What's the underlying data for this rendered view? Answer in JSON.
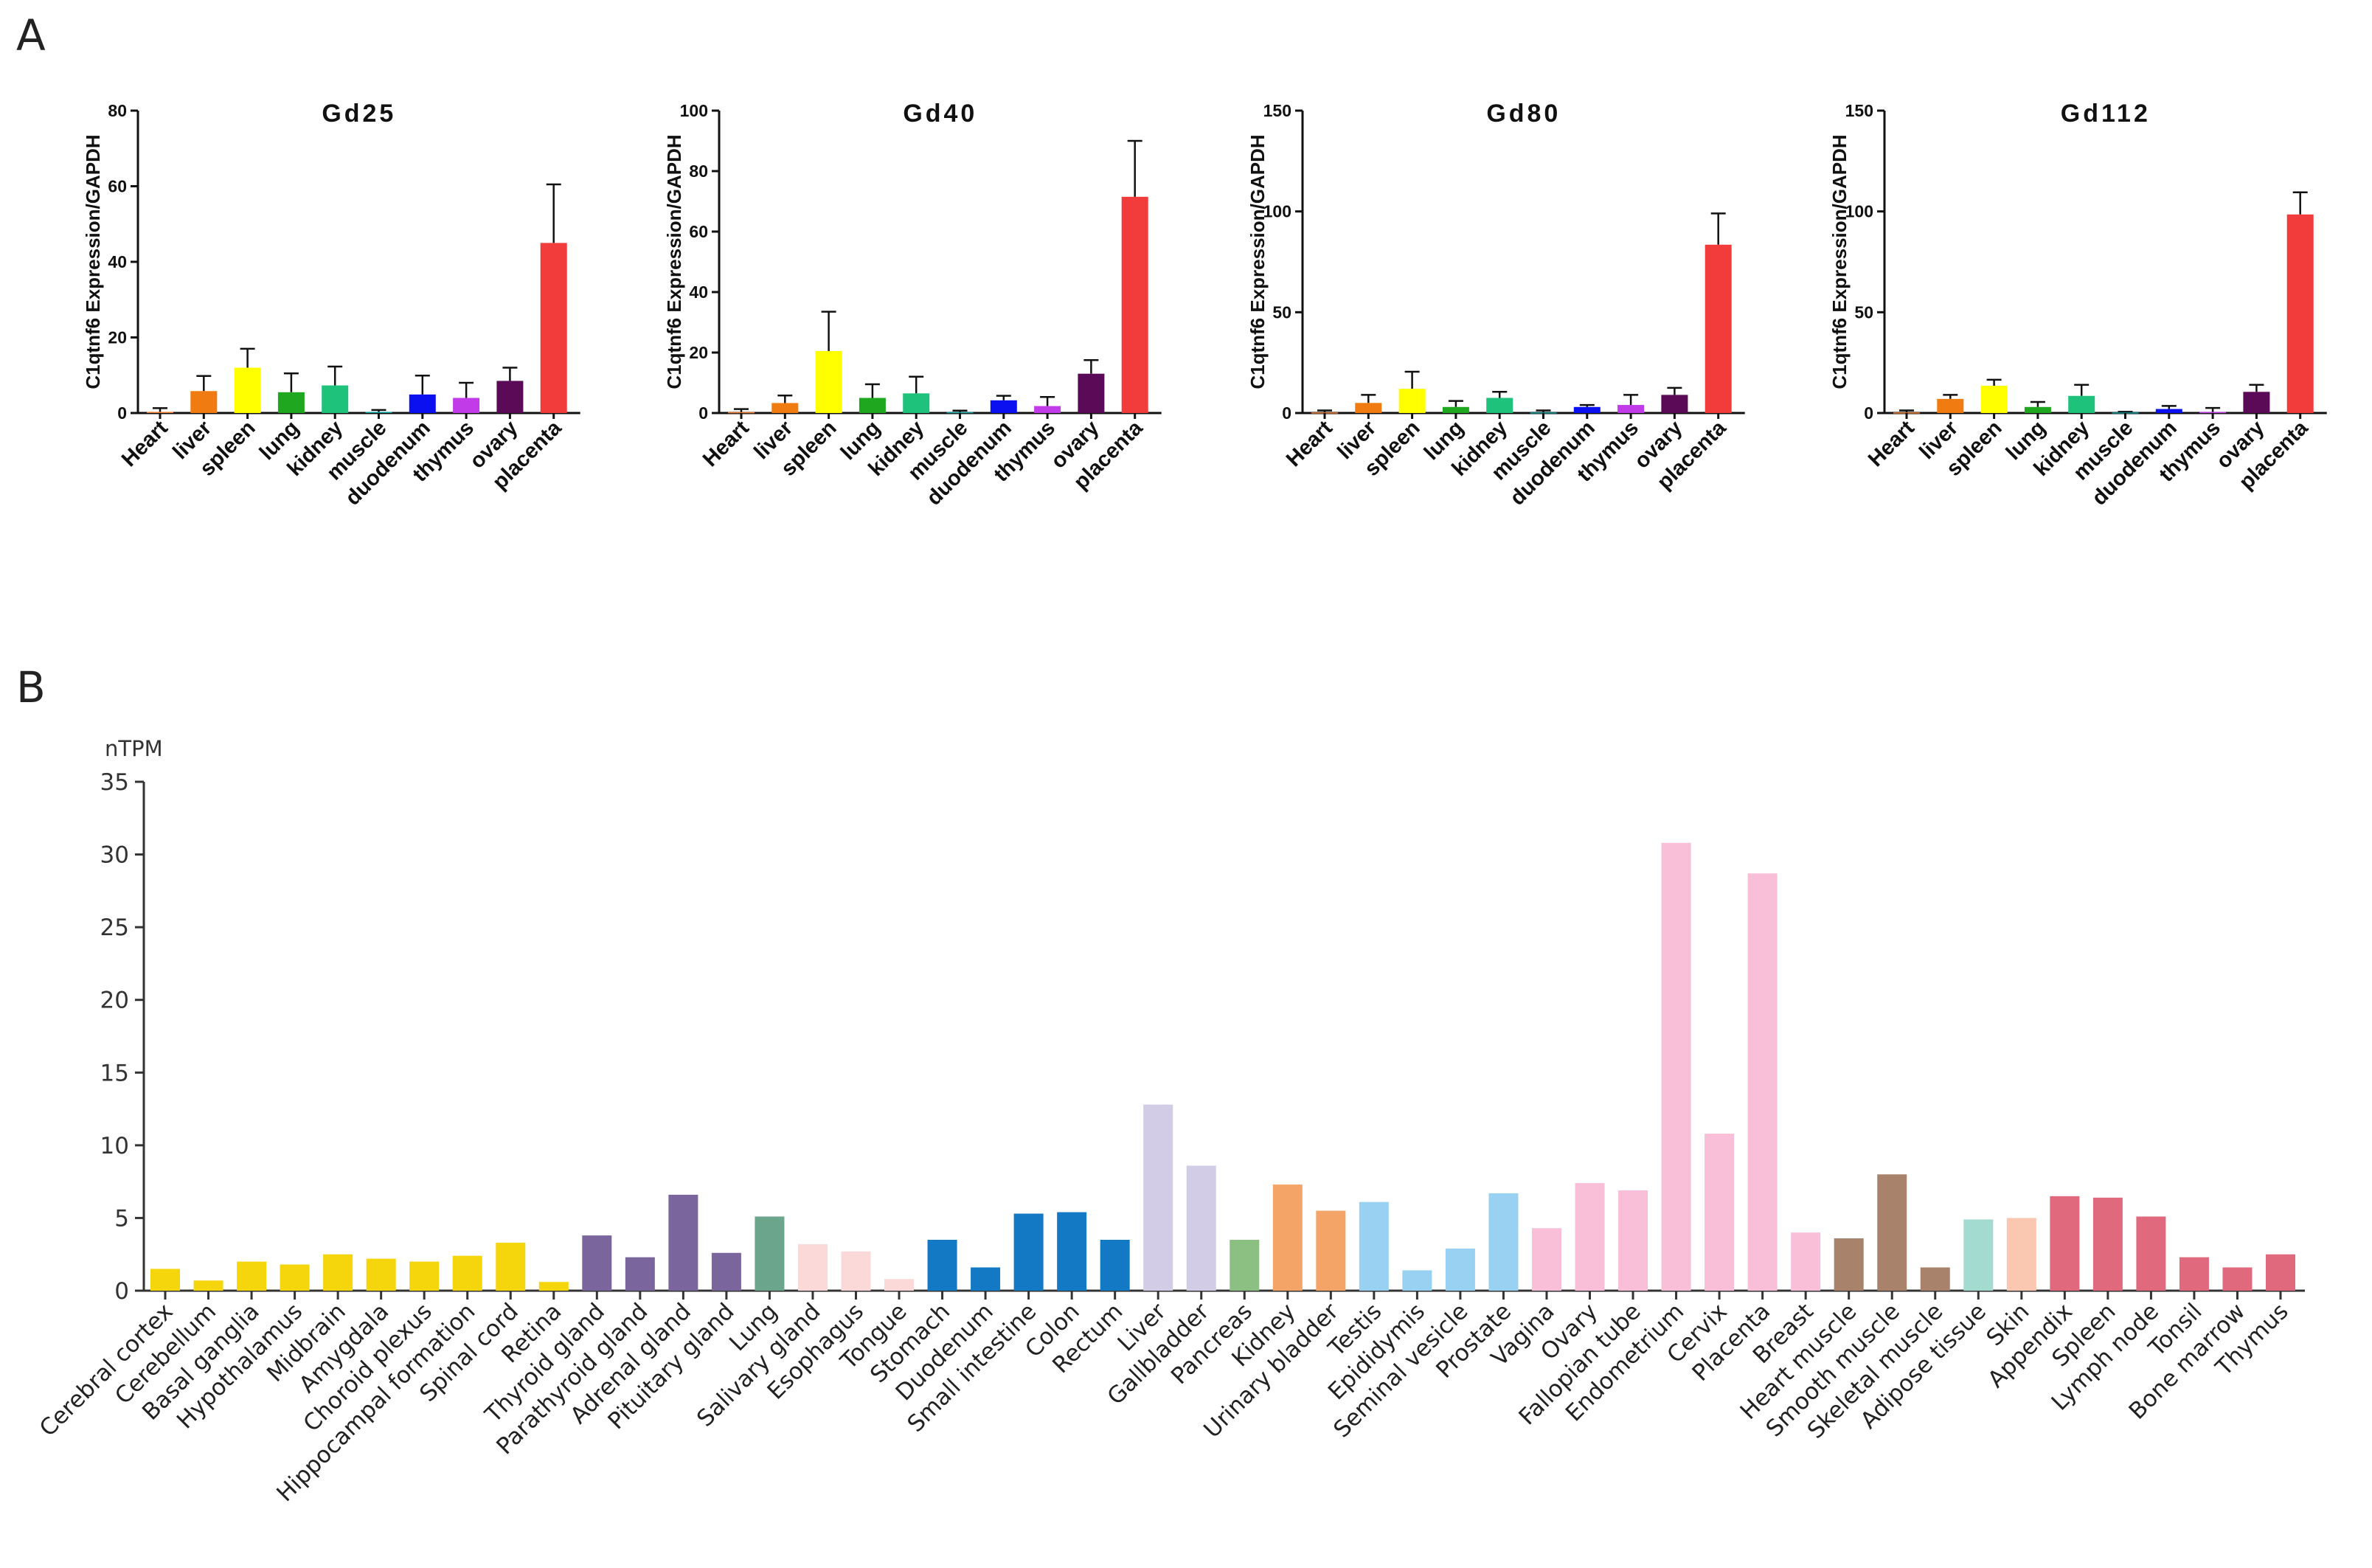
{
  "figure": {
    "panel_a_letter": "A",
    "panel_b_letter": "B"
  },
  "chart_data": [
    {
      "type": "bar",
      "title": "Gd25",
      "ylabel": "C1qtnf6 Expression/GAPDH",
      "xlabel": "",
      "ylim": [
        0,
        80
      ],
      "yticks": [
        0,
        20,
        40,
        60,
        80
      ],
      "categories": [
        "Heart",
        "liver",
        "spleen",
        "lung",
        "kidney",
        "muscle",
        "duodenum",
        "thymus",
        "ovary",
        "placenta"
      ],
      "values": [
        0.3,
        5.8,
        12,
        5.5,
        7.3,
        0.3,
        4.9,
        4,
        8.5,
        45
      ],
      "errors": [
        1,
        4,
        5,
        5,
        5,
        0.5,
        5,
        4,
        3.5,
        15.5
      ],
      "colors": [
        "#ed7d31",
        "#f07b10",
        "#ffff00",
        "#1fa81f",
        "#1ec27a",
        "#0c9b9b",
        "#0a10f0",
        "#c13ce8",
        "#5a0a56",
        "#f23b3b"
      ]
    },
    {
      "type": "bar",
      "title": "Gd40",
      "ylabel": "C1qtnf6 Expression/GAPDH",
      "xlabel": "",
      "ylim": [
        0,
        100
      ],
      "yticks": [
        0,
        20,
        40,
        60,
        80,
        100
      ],
      "categories": [
        "Heart",
        "liver",
        "spleen",
        "lung",
        "kidney",
        "muscle",
        "duodenum",
        "thymus",
        "ovary",
        "placenta"
      ],
      "values": [
        0.3,
        3.3,
        20.5,
        5,
        6.5,
        0.3,
        4.2,
        2.3,
        13,
        71.5
      ],
      "errors": [
        1,
        2.5,
        13,
        4.5,
        5.5,
        0.5,
        1.5,
        3,
        4.5,
        18.5
      ],
      "colors": [
        "#ed7d31",
        "#f07b10",
        "#ffff00",
        "#1fa81f",
        "#1ec27a",
        "#0c9b9b",
        "#0a10f0",
        "#c13ce8",
        "#5a0a56",
        "#f23b3b"
      ]
    },
    {
      "type": "bar",
      "title": "Gd80",
      "ylabel": "C1qtnf6 Expression/GAPDH",
      "xlabel": "",
      "ylim": [
        0,
        150
      ],
      "yticks": [
        0,
        50,
        100,
        150
      ],
      "categories": [
        "Heart",
        "liver",
        "spleen",
        "lung",
        "kidney",
        "muscle",
        "duodenum",
        "thymus",
        "ovary",
        "placenta"
      ],
      "values": [
        0.3,
        5,
        12,
        3,
        7.5,
        0.3,
        3,
        4,
        9,
        83.5
      ],
      "errors": [
        1,
        4,
        8.5,
        3,
        3,
        1,
        1,
        5,
        3.5,
        15.5
      ],
      "colors": [
        "#ed7d31",
        "#f07b10",
        "#ffff00",
        "#1fa81f",
        "#1ec27a",
        "#0c9b9b",
        "#0a10f0",
        "#c13ce8",
        "#5a0a56",
        "#f23b3b"
      ]
    },
    {
      "type": "bar",
      "title": "Gd112",
      "ylabel": "C1qtnf6 Expression/GAPDH",
      "xlabel": "",
      "ylim": [
        0,
        150
      ],
      "yticks": [
        0,
        50,
        100,
        150
      ],
      "categories": [
        "Heart",
        "liver",
        "spleen",
        "lung",
        "kidney",
        "muscle",
        "duodenum",
        "thymus",
        "ovary",
        "placenta"
      ],
      "values": [
        0.3,
        7,
        13.5,
        3,
        8.5,
        0.3,
        2,
        0.5,
        10.5,
        98.5
      ],
      "errors": [
        1,
        2,
        3,
        2.5,
        5.5,
        0.3,
        1.5,
        2,
        3.5,
        11
      ],
      "colors": [
        "#ed7d31",
        "#f07b10",
        "#ffff00",
        "#1fa81f",
        "#1ec27a",
        "#0c9b9b",
        "#0a10f0",
        "#c13ce8",
        "#5a0a56",
        "#f23b3b"
      ]
    },
    {
      "type": "bar",
      "title": "",
      "ylabel": "nTPM",
      "xlabel": "",
      "ylim": [
        0,
        35
      ],
      "yticks": [
        0,
        5,
        10,
        15,
        20,
        25,
        30,
        35
      ],
      "categories": [
        "Cerebral cortex",
        "Cerebellum",
        "Basal ganglia",
        "Hypothalamus",
        "Midbrain",
        "Amygdala",
        "Choroid plexus",
        "Hippocampal formation",
        "Spinal cord",
        "Retina",
        "Thyroid gland",
        "Parathyroid gland",
        "Adrenal gland",
        "Pituitary gland",
        "Lung",
        "Salivary gland",
        "Esophagus",
        "Tongue",
        "Stomach",
        "Duodenum",
        "Small intestine",
        "Colon",
        "Rectum",
        "Liver",
        "Gallbladder",
        "Pancreas",
        "Kidney",
        "Urinary bladder",
        "Testis",
        "Epididymis",
        "Seminal vesicle",
        "Prostate",
        "Vagina",
        "Ovary",
        "Fallopian tube",
        "Endometrium",
        "Cervix",
        "Placenta",
        "Breast",
        "Heart muscle",
        "Smooth muscle",
        "Skeletal muscle",
        "Adipose tissue",
        "Skin",
        "Appendix",
        "Spleen",
        "Lymph node",
        "Tonsil",
        "Bone marrow",
        "Thymus"
      ],
      "values": [
        1.5,
        0.7,
        2.0,
        1.8,
        2.5,
        2.2,
        2.0,
        2.4,
        3.3,
        0.6,
        3.8,
        2.3,
        6.6,
        2.6,
        5.1,
        3.2,
        2.7,
        0.8,
        3.5,
        1.6,
        5.3,
        5.4,
        3.5,
        12.8,
        8.6,
        3.5,
        7.3,
        5.5,
        6.1,
        1.4,
        2.9,
        6.7,
        4.3,
        7.4,
        6.9,
        30.8,
        10.8,
        28.7,
        4.0,
        3.6,
        8.0,
        1.6,
        4.9,
        5.0,
        6.5,
        6.4,
        5.1,
        2.3,
        1.6,
        2.5
      ],
      "colors": [
        "#f5d50c",
        "#f5d50c",
        "#f5d50c",
        "#f5d50c",
        "#f5d50c",
        "#f5d50c",
        "#f5d50c",
        "#f5d50c",
        "#f5d50c",
        "#f5d50c",
        "#7b659d",
        "#7b659d",
        "#7b659d",
        "#7b659d",
        "#6aa58c",
        "#fbd9d9",
        "#fbd9d9",
        "#fbd9d9",
        "#1479c4",
        "#1479c4",
        "#1479c4",
        "#1479c4",
        "#1479c4",
        "#d2cce6",
        "#d2cce6",
        "#8cbf82",
        "#f5a467",
        "#f5a467",
        "#99d1f2",
        "#99d1f2",
        "#99d1f2",
        "#99d1f2",
        "#f9bfd8",
        "#f9bfd8",
        "#f9bfd8",
        "#f9bfd8",
        "#f9bfd8",
        "#f9bfd8",
        "#f9bfd8",
        "#a8826a",
        "#a8826a",
        "#a8826a",
        "#a4dbd0",
        "#fac8b0",
        "#e0697e",
        "#e0697e",
        "#e0697e",
        "#e0697e",
        "#e0697e",
        "#e0697e"
      ]
    }
  ]
}
